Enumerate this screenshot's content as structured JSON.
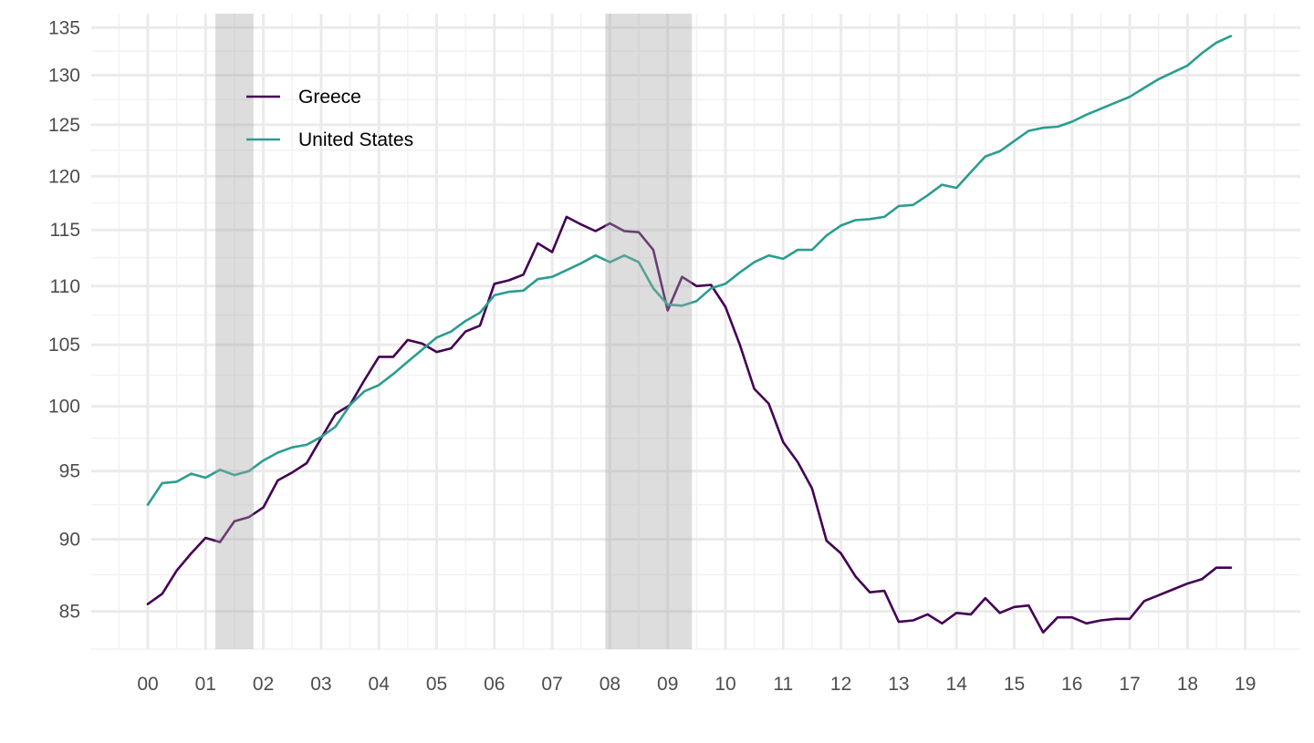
{
  "chart_data": {
    "type": "line",
    "title": "",
    "xlabel": "",
    "ylabel": "",
    "y_scale": "log",
    "ylim": [
      82.5,
      136.5
    ],
    "xlim": [
      1999.5,
      2019.5
    ],
    "grid": true,
    "legend_position": "top-left",
    "x_ticks": [
      {
        "value": 2000,
        "label": "00"
      },
      {
        "value": 2001,
        "label": "01"
      },
      {
        "value": 2002,
        "label": "02"
      },
      {
        "value": 2003,
        "label": "03"
      },
      {
        "value": 2004,
        "label": "04"
      },
      {
        "value": 2005,
        "label": "05"
      },
      {
        "value": 2006,
        "label": "06"
      },
      {
        "value": 2007,
        "label": "07"
      },
      {
        "value": 2008,
        "label": "08"
      },
      {
        "value": 2009,
        "label": "09"
      },
      {
        "value": 2010,
        "label": "10"
      },
      {
        "value": 2011,
        "label": "11"
      },
      {
        "value": 2012,
        "label": "12"
      },
      {
        "value": 2013,
        "label": "13"
      },
      {
        "value": 2014,
        "label": "14"
      },
      {
        "value": 2015,
        "label": "15"
      },
      {
        "value": 2016,
        "label": "16"
      },
      {
        "value": 2017,
        "label": "17"
      },
      {
        "value": 2018,
        "label": "18"
      },
      {
        "value": 2019,
        "label": "19"
      }
    ],
    "y_ticks": [
      85,
      90,
      95,
      100,
      105,
      110,
      115,
      120,
      125,
      130,
      135
    ],
    "recessions": [
      {
        "start": 2001.17,
        "end": 2001.83
      },
      {
        "start": 2007.92,
        "end": 2009.42
      }
    ],
    "x": [
      2000.0,
      2000.25,
      2000.5,
      2000.75,
      2001.0,
      2001.25,
      2001.5,
      2001.75,
      2002.0,
      2002.25,
      2002.5,
      2002.75,
      2003.0,
      2003.25,
      2003.5,
      2003.75,
      2004.0,
      2004.25,
      2004.5,
      2004.75,
      2005.0,
      2005.25,
      2005.5,
      2005.75,
      2006.0,
      2006.25,
      2006.5,
      2006.75,
      2007.0,
      2007.25,
      2007.5,
      2007.75,
      2008.0,
      2008.25,
      2008.5,
      2008.75,
      2009.0,
      2009.25,
      2009.5,
      2009.75,
      2010.0,
      2010.25,
      2010.5,
      2010.75,
      2011.0,
      2011.25,
      2011.5,
      2011.75,
      2012.0,
      2012.25,
      2012.5,
      2012.75,
      2013.0,
      2013.25,
      2013.5,
      2013.75,
      2014.0,
      2014.25,
      2014.5,
      2014.75,
      2015.0,
      2015.25,
      2015.5,
      2015.75,
      2016.0,
      2016.25,
      2016.5,
      2016.75,
      2017.0,
      2017.25,
      2017.5,
      2017.75,
      2018.0,
      2018.25,
      2018.5,
      2018.75
    ],
    "series": [
      {
        "name": "Greece",
        "color": "#440154",
        "values": [
          85.5,
          86.2,
          87.8,
          89.0,
          90.1,
          89.8,
          91.3,
          91.6,
          92.3,
          94.3,
          94.9,
          95.6,
          97.5,
          99.4,
          100.1,
          102.1,
          104.0,
          104.0,
          105.4,
          105.1,
          104.4,
          104.7,
          106.1,
          106.6,
          110.2,
          110.5,
          111.0,
          113.8,
          113.0,
          116.2,
          115.5,
          114.9,
          115.6,
          114.9,
          114.8,
          113.2,
          107.9,
          110.8,
          110.0,
          110.1,
          108.2,
          105.0,
          101.4,
          100.2,
          97.2,
          95.7,
          93.7,
          89.9,
          89.0,
          87.4,
          86.3,
          86.4,
          84.3,
          84.4,
          84.8,
          84.2,
          84.9,
          84.8,
          85.9,
          84.9,
          85.3,
          85.4,
          83.6,
          84.6,
          84.6,
          84.2,
          84.4,
          84.5,
          84.5,
          85.7,
          86.1,
          86.5,
          86.9,
          87.2,
          88.0,
          88.0
        ]
      },
      {
        "name": "United States",
        "color": "#2a9d8f",
        "values": [
          92.5,
          94.1,
          94.2,
          94.8,
          94.5,
          95.1,
          94.7,
          95.0,
          95.8,
          96.4,
          96.8,
          97.0,
          97.6,
          98.4,
          100.1,
          101.2,
          101.7,
          102.6,
          103.6,
          104.6,
          105.6,
          106.1,
          107.0,
          107.7,
          109.2,
          109.5,
          109.6,
          110.6,
          110.8,
          111.4,
          112.0,
          112.7,
          112.1,
          112.7,
          112.1,
          109.8,
          108.4,
          108.3,
          108.7,
          109.8,
          110.2,
          111.2,
          112.1,
          112.7,
          112.4,
          113.2,
          113.2,
          114.5,
          115.4,
          115.9,
          116.0,
          116.2,
          117.2,
          117.3,
          118.2,
          119.2,
          118.9,
          120.4,
          121.9,
          122.4,
          123.4,
          124.4,
          124.7,
          124.8,
          125.3,
          126.0,
          126.6,
          127.2,
          127.8,
          128.7,
          129.6,
          130.3,
          131.0,
          132.3,
          133.4,
          134.1
        ]
      }
    ]
  }
}
